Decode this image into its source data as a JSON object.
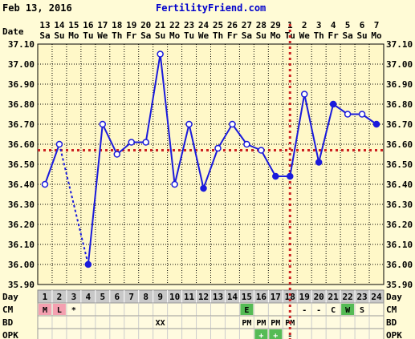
{
  "header": {
    "date": "Feb 13, 2016",
    "site": "FertilityFriend.com"
  },
  "row_labels": {
    "date": "Date",
    "day": "Day",
    "cm": "CM",
    "bd": "BD",
    "opk": "OPK"
  },
  "chart_data": {
    "type": "line",
    "title": "",
    "ylabel": "",
    "xlabel": "",
    "ylim": [
      35.9,
      37.1
    ],
    "yticks": [
      "35.90",
      "36.00",
      "36.10",
      "36.20",
      "36.30",
      "36.40",
      "36.50",
      "36.60",
      "36.70",
      "36.80",
      "36.90",
      "37.00",
      "37.10"
    ],
    "dates": [
      "13",
      "14",
      "15",
      "16",
      "17",
      "18",
      "19",
      "20",
      "21",
      "22",
      "23",
      "24",
      "25",
      "26",
      "27",
      "28",
      "29",
      "1",
      "2",
      "3",
      "4",
      "5",
      "6",
      "7"
    ],
    "weekdays": [
      "Sa",
      "Su",
      "Mo",
      "Tu",
      "We",
      "Th",
      "Fr",
      "Sa",
      "Su",
      "Mo",
      "Tu",
      "We",
      "Th",
      "Fr",
      "Sa",
      "Su",
      "Mo",
      "Tu",
      "We",
      "Th",
      "Fr",
      "Sa",
      "Su",
      "Mo"
    ],
    "days": [
      "1",
      "2",
      "3",
      "4",
      "5",
      "6",
      "7",
      "8",
      "9",
      "10",
      "11",
      "12",
      "13",
      "14",
      "15",
      "16",
      "17",
      "18",
      "19",
      "20",
      "21",
      "22",
      "23",
      "24"
    ],
    "temps": [
      36.4,
      36.6,
      null,
      36.0,
      36.7,
      36.55,
      36.61,
      36.61,
      37.05,
      36.4,
      36.7,
      36.38,
      36.58,
      36.7,
      36.6,
      36.57,
      36.44,
      36.44,
      36.85,
      36.51,
      36.8,
      36.75,
      36.75,
      36.7
    ],
    "filled": [
      false,
      false,
      false,
      true,
      false,
      false,
      false,
      false,
      false,
      false,
      false,
      true,
      false,
      false,
      false,
      false,
      true,
      true,
      false,
      true,
      true,
      false,
      false,
      true
    ],
    "dashed_segments": [
      [
        2,
        4
      ]
    ],
    "coverline": 36.57,
    "ovulation_day": 18,
    "cm": [
      "M",
      "L",
      "*",
      "",
      "",
      "",
      "",
      "",
      "",
      "",
      "",
      "",
      "",
      "",
      "E",
      "",
      "",
      "",
      "-",
      "-",
      "C",
      "W",
      "S",
      ""
    ],
    "cm_colors": {
      "M": "#f4a0b0",
      "L": "#f4a0b0",
      "E": "#55bb55",
      "W": "#55bb55"
    },
    "bd": [
      "",
      "",
      "",
      "",
      "",
      "",
      "",
      "",
      "XX",
      "",
      "",
      "",
      "",
      "",
      "PM",
      "PM",
      "PM",
      "PM",
      "",
      "",
      "",
      "",
      "",
      ""
    ],
    "opk": [
      "",
      "",
      "",
      "",
      "",
      "",
      "",
      "",
      "",
      "",
      "",
      "",
      "",
      "",
      "",
      "+",
      "+",
      "-",
      "",
      "",
      "",
      "",
      "",
      ""
    ],
    "opk_colors": {
      "+": "#55bb55"
    },
    "colors": {
      "line": "#1a1adc",
      "coverline": "#cc2222",
      "grid": "#000000",
      "background": "#fff8c8",
      "day_row": "#c8c8c8"
    }
  }
}
